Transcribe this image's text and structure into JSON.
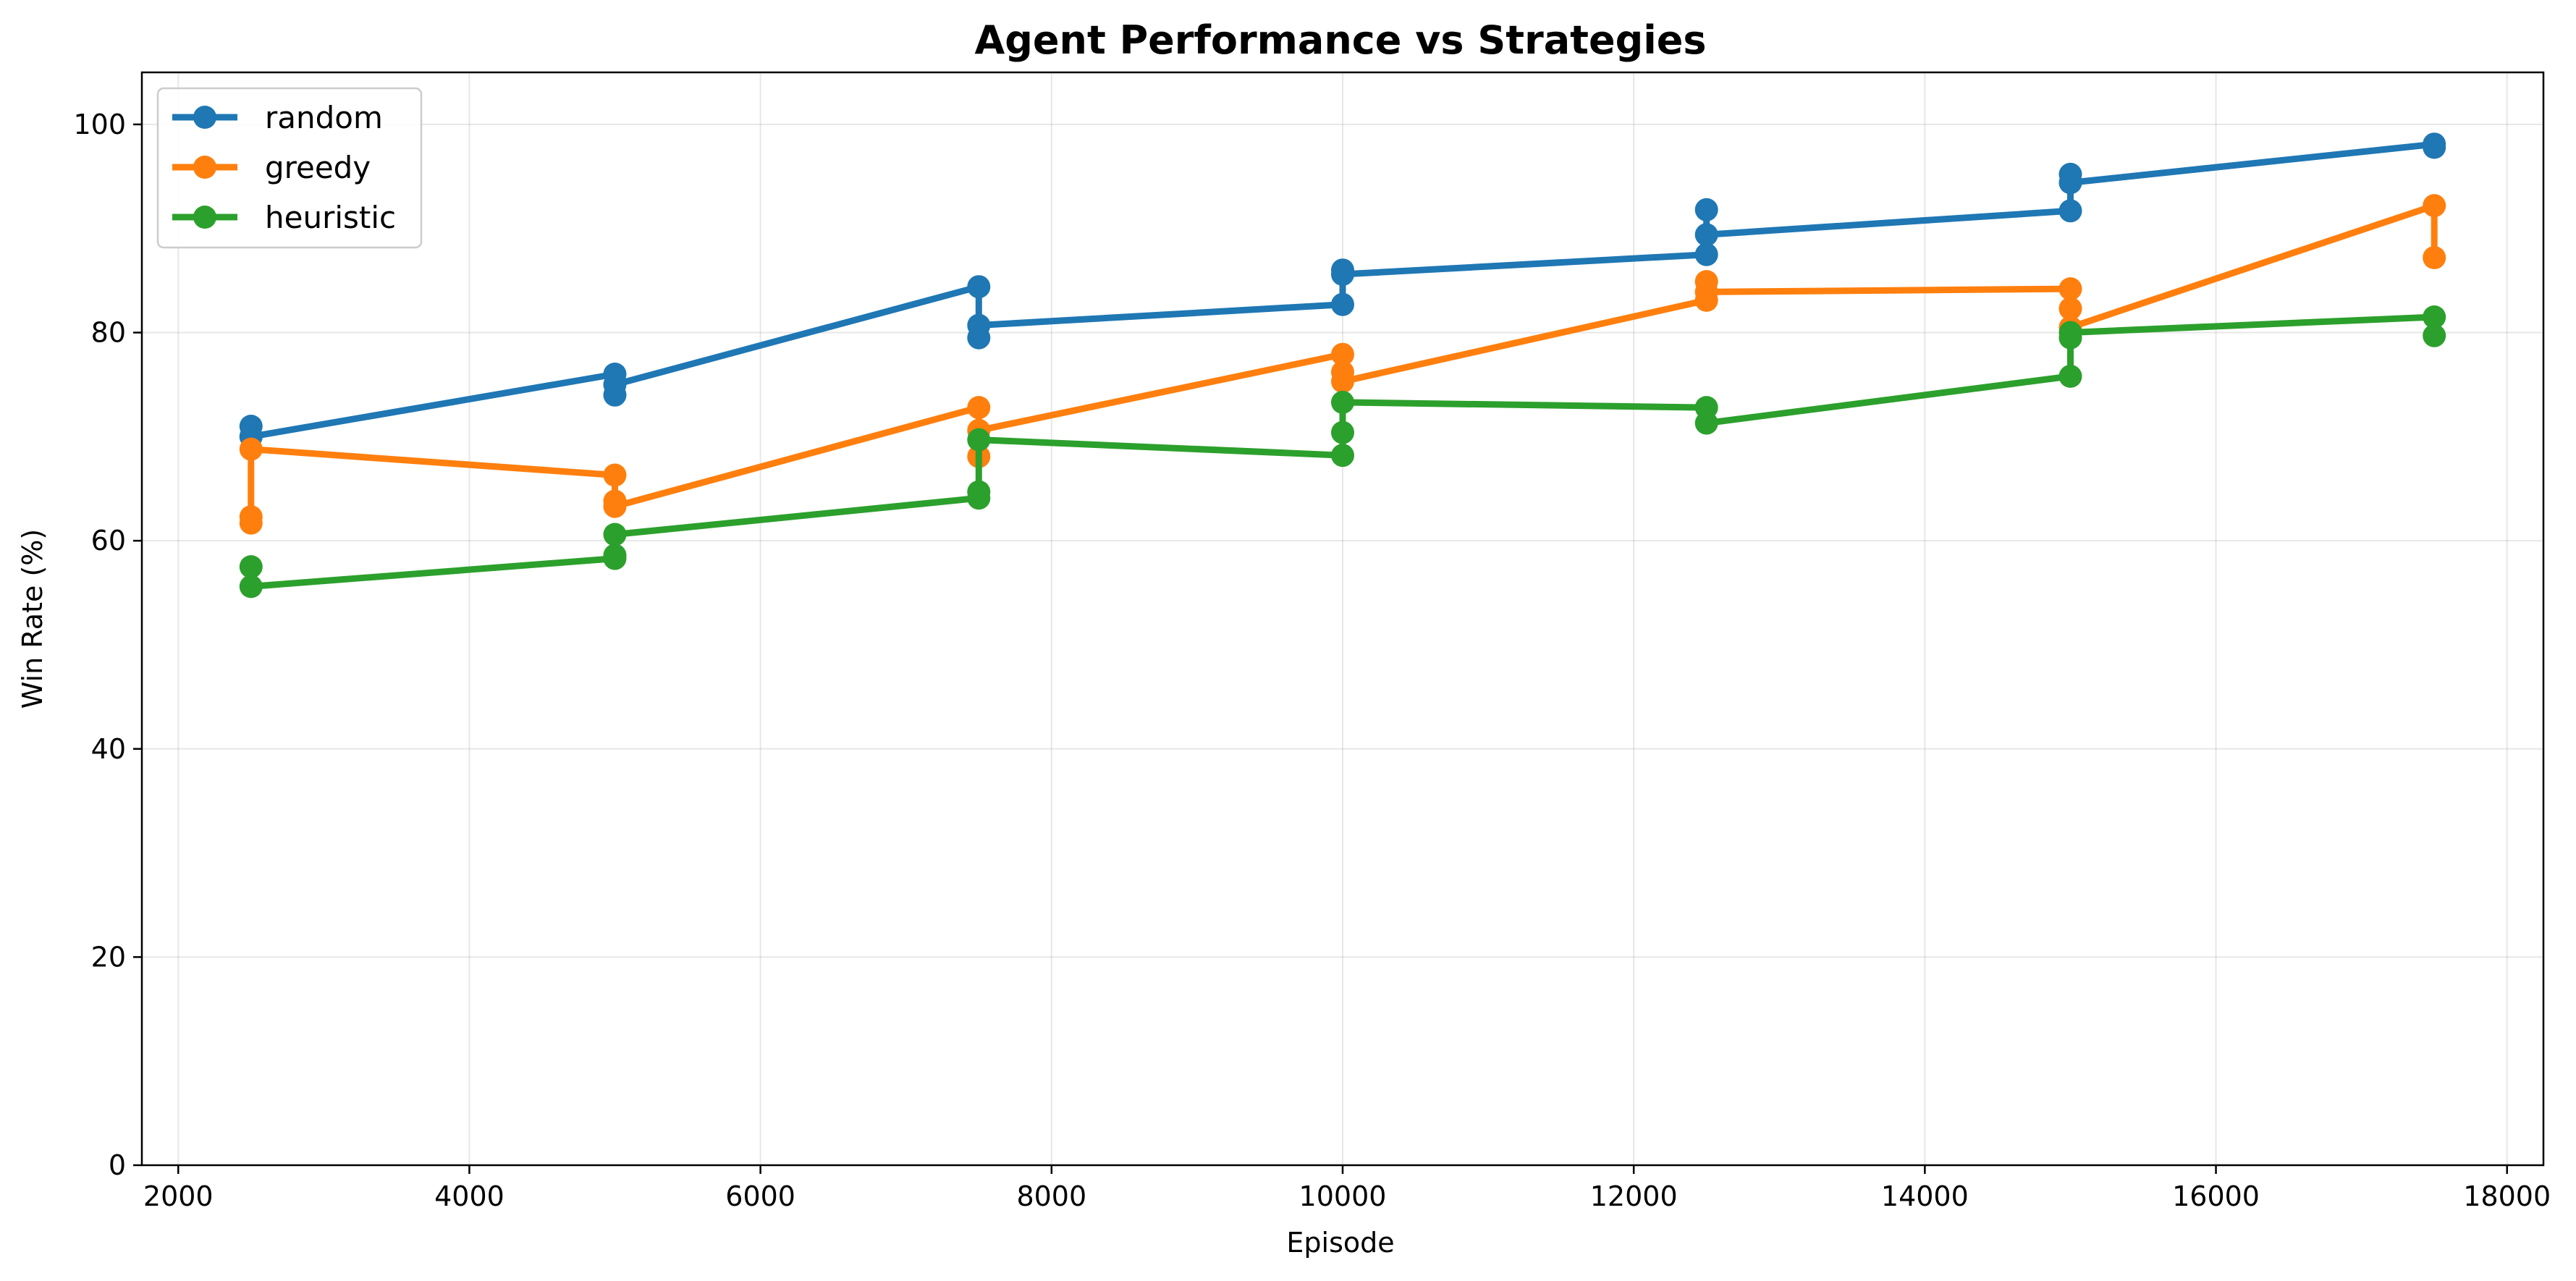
{
  "chart_data": {
    "type": "line",
    "title": "Agent Performance vs Strategies",
    "xlabel": "Episode",
    "ylabel": "Win Rate (%)",
    "xlim": [
      1750,
      18250
    ],
    "ylim": [
      0,
      105
    ],
    "xticks": [
      2000,
      4000,
      6000,
      8000,
      10000,
      12000,
      14000,
      16000,
      18000
    ],
    "yticks": [
      0,
      20,
      40,
      60,
      80,
      100
    ],
    "grid": true,
    "legend_position": "top-left",
    "series": [
      {
        "name": "random",
        "color": "#1f77b4",
        "points": [
          [
            2500,
            70.0
          ],
          [
            2500,
            71.0
          ],
          [
            2500,
            70.0
          ],
          [
            5000,
            76.0
          ],
          [
            5000,
            74.0
          ],
          [
            5000,
            75.0
          ],
          [
            7500,
            84.4
          ],
          [
            7500,
            79.5
          ],
          [
            7500,
            80.7
          ],
          [
            10000,
            82.7
          ],
          [
            10000,
            86.0
          ],
          [
            10000,
            85.6
          ],
          [
            12500,
            87.5
          ],
          [
            12500,
            91.8
          ],
          [
            12500,
            89.4
          ],
          [
            15000,
            91.7
          ],
          [
            15000,
            95.2
          ],
          [
            15000,
            94.4
          ],
          [
            17500,
            98.1
          ],
          [
            17500,
            97.8
          ]
        ]
      },
      {
        "name": "greedy",
        "color": "#ff7f0e",
        "points": [
          [
            2500,
            62.3
          ],
          [
            2500,
            61.7
          ],
          [
            2500,
            68.8
          ],
          [
            5000,
            66.3
          ],
          [
            5000,
            63.8
          ],
          [
            5000,
            63.3
          ],
          [
            7500,
            72.8
          ],
          [
            7500,
            68.1
          ],
          [
            7500,
            70.6
          ],
          [
            10000,
            77.9
          ],
          [
            10000,
            76.2
          ],
          [
            10000,
            75.3
          ],
          [
            12500,
            83.1
          ],
          [
            12500,
            84.9
          ],
          [
            12500,
            83.9
          ],
          [
            15000,
            84.2
          ],
          [
            15000,
            82.3
          ],
          [
            15000,
            80.5
          ],
          [
            17500,
            92.2
          ],
          [
            17500,
            87.2
          ]
        ]
      },
      {
        "name": "heuristic",
        "color": "#2ca02c",
        "points": [
          [
            2500,
            57.5
          ],
          [
            2500,
            55.6
          ],
          [
            5000,
            58.3
          ],
          [
            5000,
            58.6
          ],
          [
            5000,
            60.6
          ],
          [
            7500,
            64.1
          ],
          [
            7500,
            64.7
          ],
          [
            7500,
            69.7
          ],
          [
            10000,
            68.2
          ],
          [
            10000,
            70.4
          ],
          [
            10000,
            73.3
          ],
          [
            12500,
            72.8
          ],
          [
            12500,
            71.3
          ],
          [
            15000,
            75.8
          ],
          [
            15000,
            79.5
          ],
          [
            15000,
            80.0
          ],
          [
            17500,
            81.5
          ],
          [
            17500,
            79.7
          ]
        ]
      }
    ]
  }
}
